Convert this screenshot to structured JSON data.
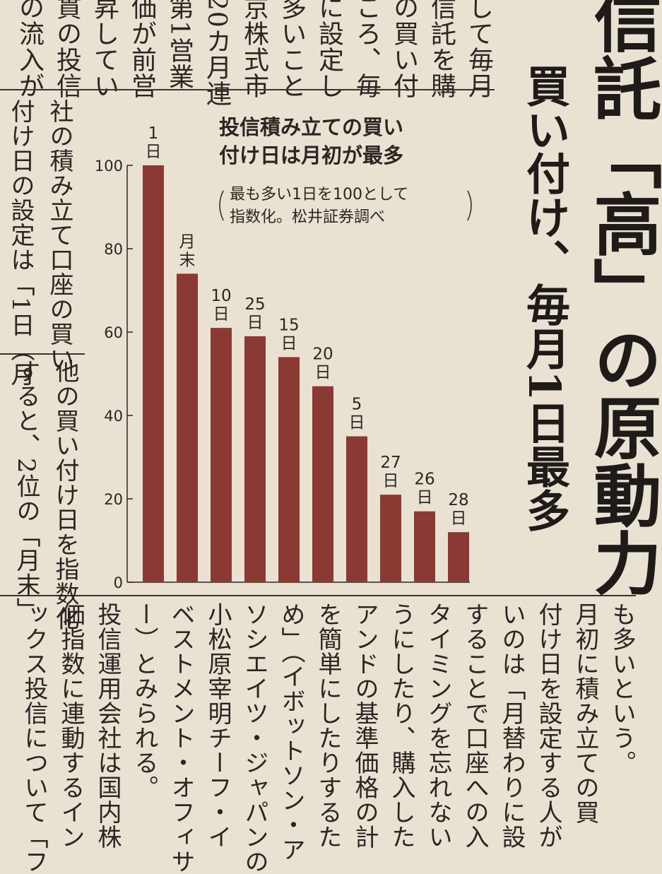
{
  "top_columns": [
    "して毎月",
    "信託を購",
    "の買い付",
    "ころ、毎",
    "に設定し",
    "多いこと",
    "京株式市",
    "20カ月連",
    "第1営業",
    "価が前営",
    "昇してい",
    "貫の投信",
    "の流入が"
  ],
  "left_columns": [
    "社の積み立て口座の買い",
    "付け日の設定は「1日（月"
  ],
  "left_columns_b": [
    "他の買い付け日を指数化",
    "すると、2位の「月末」"
  ],
  "headline": {
    "main_label": "買い付け、毎月1日最多",
    "partial_label": "信託「高」の原動力"
  },
  "bottom_columns": [
    "も多いという。",
    "月初に積み立ての買",
    "付け日を設定する人が",
    "いのは「月替わりに設",
    "することで口座への入",
    "タイミングを忘れない",
    "うにしたり、購入した",
    "アンドの基準価格の計",
    "を簡単にしたりするた",
    "め」（イボットソン・ア",
    "ソシエイツ・ジャパンの",
    "小松原宰明チーフ・イ",
    "ベストメント・オフィサ",
    "ー）とみられる。",
    "投信運用会社は国内株",
    "価指数に連動するイン",
    "ックス投信について「フ"
  ],
  "chart_data": {
    "type": "bar",
    "title_lines": [
      "投信積み立ての買い",
      "付け日は月初が最多"
    ],
    "note_lines": [
      "最も多い1日を100として",
      "指数化。松井証券調べ"
    ],
    "categories": [
      "1日",
      "月末",
      "10日",
      "25日",
      "15日",
      "20日",
      "5日",
      "27日",
      "26日",
      "28日"
    ],
    "label_lines": [
      [
        "1",
        "日"
      ],
      [
        "月末"
      ],
      [
        "10",
        "日"
      ],
      [
        "25",
        "日"
      ],
      [
        "15",
        "日"
      ],
      [
        "20",
        "日"
      ],
      [
        "5",
        "日"
      ],
      [
        "27",
        "日"
      ],
      [
        "26",
        "日"
      ],
      [
        "28",
        "日"
      ]
    ],
    "values": [
      100,
      74,
      61,
      59,
      54,
      47,
      35,
      21,
      17,
      12
    ],
    "ylim": [
      0,
      100
    ],
    "yticks": [
      0,
      20,
      40,
      60,
      80,
      100
    ],
    "bar_color": "#8a3a33",
    "grid": false
  }
}
